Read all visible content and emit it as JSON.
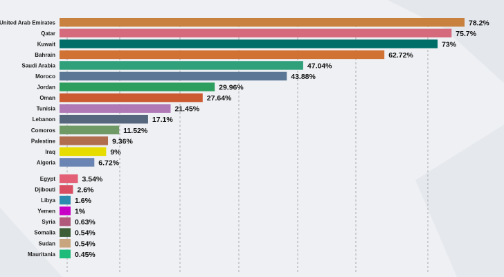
{
  "chart_data": {
    "type": "bar",
    "orientation": "horizontal",
    "title": "",
    "xlabel": "",
    "ylabel": "",
    "grid": true,
    "categories": [
      "United Arab Emirates",
      "Qatar",
      "Kuwait",
      "Bahrain",
      "Saudi Arabia",
      "Moroco",
      "Jordan",
      "Oman",
      "Tunisia",
      "Lebanon",
      "Comoros",
      "Palestine",
      "Iraq",
      "Algeria",
      "Egypt",
      "Djibouti",
      "Libya",
      "Yemen",
      "Syria",
      "Somalia",
      "Sudan",
      "Mauritania"
    ],
    "values": [
      78.2,
      75.7,
      73,
      62.72,
      47.04,
      43.88,
      29.96,
      27.64,
      21.45,
      17.1,
      11.52,
      9.36,
      9,
      6.72,
      3.54,
      2.6,
      1.6,
      1,
      0.63,
      0.54,
      0.54,
      0.45
    ],
    "value_labels": [
      "78.2%",
      "75.7%",
      "73%",
      "62.72%",
      "47.04%",
      "43.88%",
      "29.96%",
      "27.64%",
      "21.45%",
      "17.1%",
      "11.52%",
      "9.36%",
      "9%",
      "6.72%",
      "3.54%",
      "2.6%",
      "1.6%",
      "1%",
      "0.63%",
      "0.54%",
      "0.54%",
      "0.45%"
    ],
    "colors": [
      "#c8813f",
      "#d46a7c",
      "#006e68",
      "#cf7234",
      "#2fa07a",
      "#5b7795",
      "#2e9e5e",
      "#cc5a30",
      "#b079b6",
      "#56677d",
      "#6f9a66",
      "#b06e4f",
      "#e6dc00",
      "#6a85b3",
      "#e35f76",
      "#d94e62",
      "#2e8bb0",
      "#c800c5",
      "#b0597a",
      "#3e5e38",
      "#c9a57f",
      "#1fbb7a"
    ]
  }
}
